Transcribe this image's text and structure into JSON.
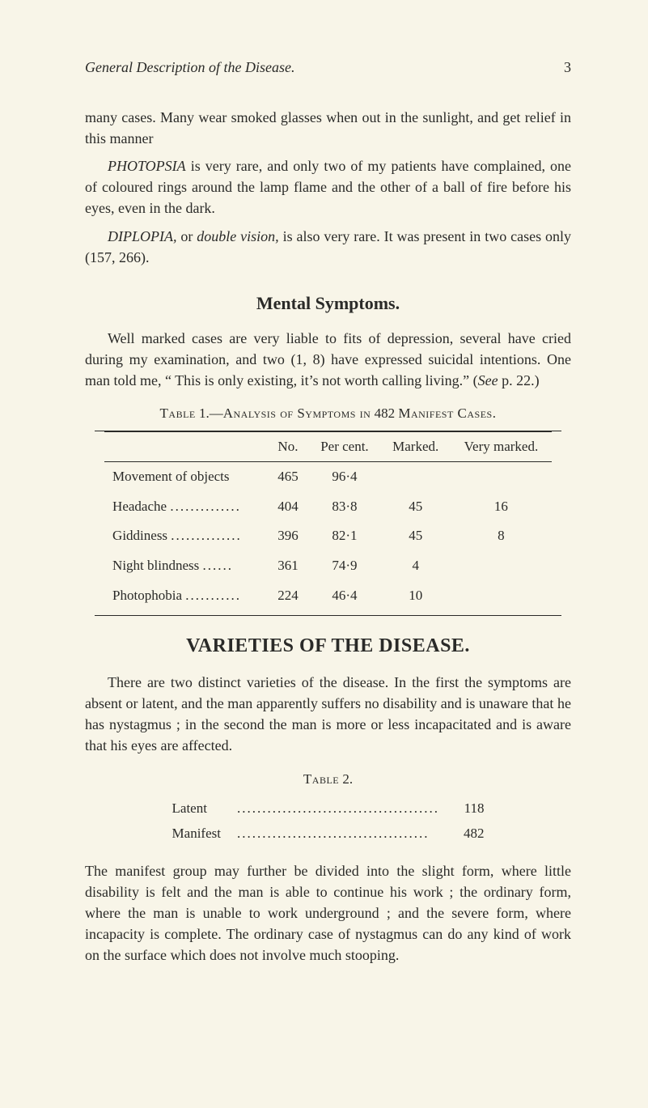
{
  "colors": {
    "background": "#f8f5e8",
    "text": "#2a2a28",
    "rule": "#2a2a28"
  },
  "typography": {
    "body_fontsize_pt": 13,
    "heading_fontsize_pt": 16,
    "big_heading_fontsize_pt": 18,
    "font_family": "Georgia / Times-like serif"
  },
  "header": {
    "running_title": "General Description of the Disease.",
    "page_number": "3"
  },
  "para1": "many cases.  Many wear smoked glasses when out in the sunlight, and get relief in this manner",
  "para2_lead": "PHOTOPSIA",
  "para2_rest": " is very rare, and only two of my patients have complained, one of coloured rings around the lamp flame and the other of a ball of fire before his eyes, even in the dark.",
  "para3_lead": "DIPLOPIA,",
  "para3_mid": " or ",
  "para3_it": "double vision,",
  "para3_rest": " is also very rare.  It was present in two cases only (157, 266).",
  "section_mental": "Mental Symptoms.",
  "para4": "Well marked cases are very liable to fits of depression, several have cried during my examination, and two (1, 8) have expressed suicidal intentions.  One man told me, “ This is only existing, it’s not worth calling living.”  (See p. 22.)",
  "para4_see_prefix": "Well marked cases are very liable to fits of depression, several have cried during my examination, and two (1, 8) have expressed suicidal intentions.  One man told me, “ This is only existing, it’s not worth calling living.”  (",
  "para4_see": "See",
  "para4_see_suffix": " p. 22.)",
  "table1": {
    "type": "table",
    "caption_sc1": "Table",
    "caption_num": " 1.—",
    "caption_sc2": "Analysis of Symptoms in",
    "caption_mid": " 482 ",
    "caption_sc3": "Manifest Cases.",
    "columns": [
      "",
      "No.",
      "Per cent.",
      "Marked.",
      "Very marked."
    ],
    "col_no": "No.",
    "col_per": "Per cent.",
    "col_marked": "Marked.",
    "col_very": "Very marked.",
    "rows": [
      {
        "label": "Movement of objects",
        "no": "465",
        "per": "96·4",
        "marked": "",
        "very": ""
      },
      {
        "label": "Headache",
        "no": "404",
        "per": "83·8",
        "marked": "45",
        "very": "16"
      },
      {
        "label": "Giddiness",
        "no": "396",
        "per": "82·1",
        "marked": "45",
        "very": "8"
      },
      {
        "label": "Night blindness",
        "no": "361",
        "per": "74·9",
        "marked": "4",
        "very": ""
      },
      {
        "label": "Photophobia",
        "no": "224",
        "per": "46·4",
        "marked": "10",
        "very": ""
      }
    ],
    "rule_color": "#2a2a28",
    "fontsize_pt": 12
  },
  "section_varieties": "VARIETIES OF THE DISEASE.",
  "para5": "There are two distinct varieties of the disease.  In the first the symptoms are absent or latent, and the man apparently suffers no disability and is unaware that he has nystagmus ; in the second the man is more or less incapacitated and is aware that his eyes are affected.",
  "table2": {
    "type": "table",
    "caption_sc": "Table",
    "caption_rest": " 2.",
    "rows": [
      {
        "label": "Latent",
        "value": "118"
      },
      {
        "label": "Manifest",
        "value": "482"
      }
    ],
    "fontsize_pt": 12
  },
  "para6": "The manifest group may further be divided into the slight form, where little disability is felt and the man is able to continue his work ; the ordinary form, where the man is unable to work under­ground ; and the severe form, where incapacity is complete.  The ordinary case of nystagmus can do any kind of work on the surface which does not involve much stooping."
}
